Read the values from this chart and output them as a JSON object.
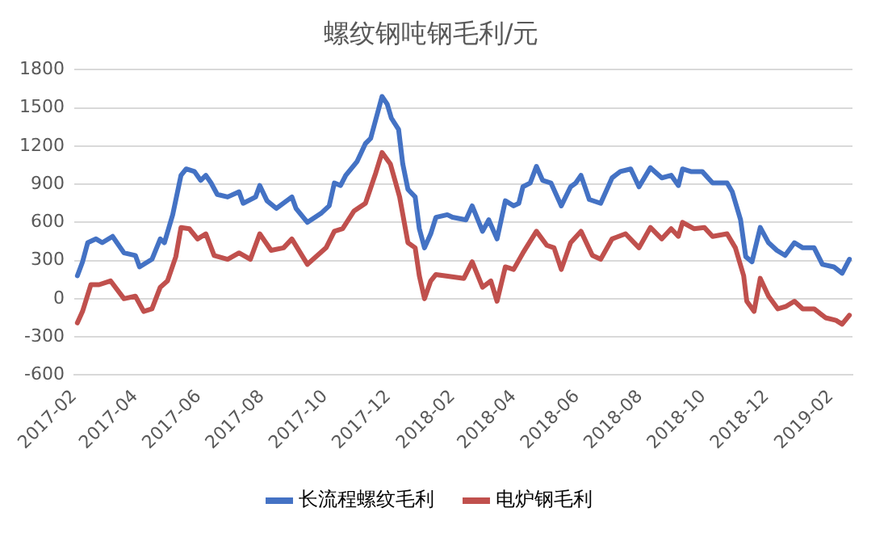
{
  "chart_data": {
    "type": "line",
    "title": "螺纹钢吨钢毛利/元",
    "legend": "bottom",
    "grid": "y",
    "line_style": "solid",
    "xlim": [
      "2017-02-01",
      "2019-02-22"
    ],
    "xticks": [
      "2017-02",
      "2017-04",
      "2017-06",
      "2017-08",
      "2017-10",
      "2017-12",
      "2018-02",
      "2018-04",
      "2018-06",
      "2018-08",
      "2018-10",
      "2018-12",
      "2019-02"
    ],
    "ylim": [
      -600,
      1800
    ],
    "yticks": [
      -600,
      -300,
      0,
      300,
      600,
      900,
      1200,
      1500,
      1800
    ],
    "series": [
      {
        "name": "长流程螺纹毛利",
        "color": "#4472c4",
        "x": [
          "2017-02-04",
          "2017-02-09",
          "2017-02-14",
          "2017-02-22",
          "2017-02-28",
          "2017-03-10",
          "2017-03-21",
          "2017-04-01",
          "2017-04-05",
          "2017-04-17",
          "2017-04-25",
          "2017-04-29",
          "2017-05-07",
          "2017-05-15",
          "2017-05-20",
          "2017-05-28",
          "2017-06-03",
          "2017-06-08",
          "2017-06-13",
          "2017-06-19",
          "2017-06-29",
          "2017-07-10",
          "2017-07-14",
          "2017-07-26",
          "2017-07-30",
          "2017-08-06",
          "2017-08-15",
          "2017-08-30",
          "2017-09-03",
          "2017-09-14",
          "2017-09-27",
          "2017-10-05",
          "2017-10-10",
          "2017-10-16",
          "2017-10-21",
          "2017-11-01",
          "2017-11-09",
          "2017-11-14",
          "2017-11-25",
          "2017-11-30",
          "2017-12-04",
          "2017-12-11",
          "2017-12-15",
          "2017-12-20",
          "2017-12-27",
          "2017-12-31",
          "2018-01-05",
          "2018-01-11",
          "2018-01-16",
          "2018-01-27",
          "2018-02-01",
          "2018-02-14",
          "2018-02-20",
          "2018-03-02",
          "2018-03-08",
          "2018-03-16",
          "2018-03-24",
          "2018-04-01",
          "2018-04-06",
          "2018-04-10",
          "2018-04-17",
          "2018-04-23",
          "2018-04-29",
          "2018-05-07",
          "2018-05-17",
          "2018-05-26",
          "2018-05-31",
          "2018-06-05",
          "2018-06-13",
          "2018-06-24",
          "2018-07-05",
          "2018-07-13",
          "2018-07-23",
          "2018-07-31",
          "2018-08-11",
          "2018-08-22",
          "2018-08-31",
          "2018-09-07",
          "2018-09-11",
          "2018-09-19",
          "2018-09-30",
          "2018-10-10",
          "2018-10-24",
          "2018-10-29",
          "2018-11-06",
          "2018-11-11",
          "2018-11-17",
          "2018-11-25",
          "2018-12-03",
          "2018-12-11",
          "2018-12-19",
          "2018-12-28",
          "2019-01-05",
          "2019-01-16",
          "2019-01-24",
          "2019-02-04",
          "2019-02-12",
          "2019-02-19"
        ],
        "values": [
          180,
          290,
          440,
          470,
          440,
          490,
          360,
          340,
          250,
          310,
          470,
          440,
          660,
          970,
          1020,
          1000,
          930,
          970,
          910,
          820,
          800,
          840,
          750,
          800,
          890,
          770,
          710,
          800,
          710,
          600,
          670,
          730,
          910,
          890,
          970,
          1080,
          1220,
          1260,
          1590,
          1530,
          1420,
          1330,
          1060,
          860,
          800,
          550,
          400,
          510,
          640,
          660,
          640,
          620,
          730,
          530,
          620,
          470,
          770,
          730,
          750,
          880,
          910,
          1040,
          930,
          910,
          730,
          880,
          910,
          970,
          780,
          750,
          950,
          1000,
          1020,
          880,
          1030,
          950,
          970,
          890,
          1020,
          1000,
          1000,
          910,
          910,
          840,
          620,
          330,
          290,
          560,
          440,
          380,
          340,
          440,
          400,
          400,
          270,
          250,
          200,
          310
        ]
      },
      {
        "name": "电炉钢毛利",
        "color": "#c0504d",
        "x": [
          "2017-02-04",
          "2017-02-09",
          "2017-02-17",
          "2017-02-25",
          "2017-03-08",
          "2017-03-21",
          "2017-04-01",
          "2017-04-09",
          "2017-04-17",
          "2017-04-25",
          "2017-05-02",
          "2017-05-10",
          "2017-05-15",
          "2017-05-23",
          "2017-05-31",
          "2017-06-08",
          "2017-06-16",
          "2017-06-29",
          "2017-07-10",
          "2017-07-21",
          "2017-07-30",
          "2017-08-10",
          "2017-08-22",
          "2017-08-30",
          "2017-09-14",
          "2017-10-02",
          "2017-10-10",
          "2017-10-18",
          "2017-10-29",
          "2017-11-09",
          "2017-11-19",
          "2017-11-25",
          "2017-12-03",
          "2017-12-12",
          "2017-12-20",
          "2017-12-27",
          "2017-12-31",
          "2018-01-05",
          "2018-01-11",
          "2018-01-16",
          "2018-02-12",
          "2018-02-20",
          "2018-03-02",
          "2018-03-10",
          "2018-03-16",
          "2018-03-24",
          "2018-04-01",
          "2018-04-10",
          "2018-04-23",
          "2018-05-03",
          "2018-05-10",
          "2018-05-17",
          "2018-05-26",
          "2018-06-05",
          "2018-06-16",
          "2018-06-24",
          "2018-07-05",
          "2018-07-18",
          "2018-07-31",
          "2018-08-11",
          "2018-08-22",
          "2018-08-31",
          "2018-09-07",
          "2018-09-11",
          "2018-09-22",
          "2018-10-02",
          "2018-10-10",
          "2018-10-24",
          "2018-11-01",
          "2018-11-09",
          "2018-11-12",
          "2018-11-19",
          "2018-11-25",
          "2018-12-03",
          "2018-12-12",
          "2018-12-20",
          "2018-12-28",
          "2019-01-05",
          "2019-01-16",
          "2019-01-27",
          "2019-02-06",
          "2019-02-12",
          "2019-02-19"
        ],
        "values": [
          -190,
          -100,
          110,
          110,
          140,
          0,
          20,
          -100,
          -80,
          90,
          140,
          330,
          560,
          550,
          470,
          510,
          340,
          310,
          360,
          310,
          510,
          380,
          400,
          470,
          270,
          400,
          530,
          550,
          690,
          750,
          990,
          1150,
          1060,
          800,
          440,
          400,
          180,
          0,
          140,
          190,
          160,
          290,
          90,
          140,
          -20,
          250,
          230,
          360,
          530,
          420,
          400,
          230,
          440,
          530,
          340,
          310,
          470,
          510,
          400,
          560,
          470,
          550,
          490,
          600,
          550,
          560,
          490,
          510,
          400,
          180,
          -20,
          -100,
          160,
          20,
          -80,
          -60,
          -20,
          -80,
          -80,
          -150,
          -170,
          -200,
          -130
        ]
      }
    ]
  }
}
